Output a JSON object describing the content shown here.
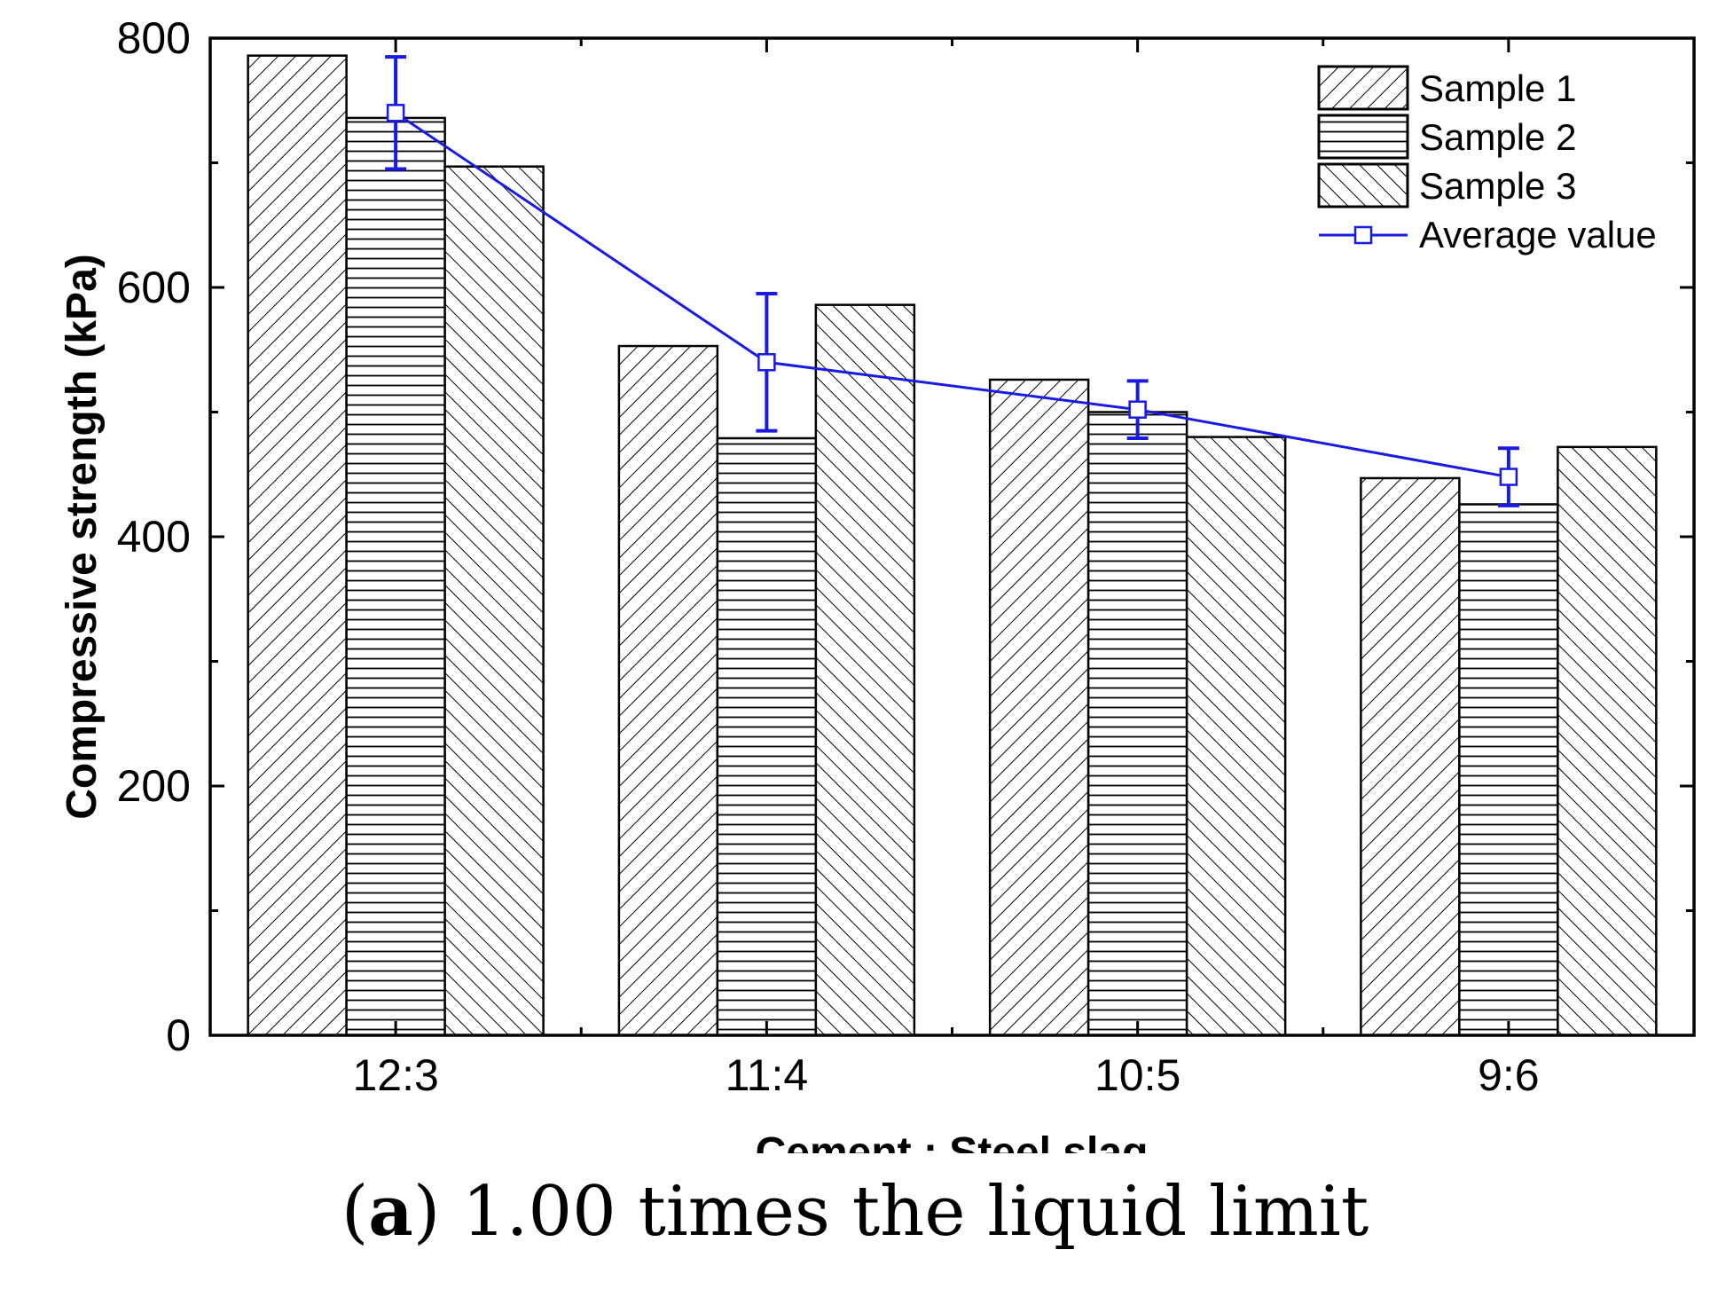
{
  "chart_data": {
    "type": "bar",
    "categories": [
      "12:3",
      "11:4",
      "10:5",
      "9:6"
    ],
    "series": [
      {
        "name": "Sample 1",
        "values": [
          786,
          553,
          526,
          447
        ],
        "pattern": "hatch-forward"
      },
      {
        "name": "Sample 2",
        "values": [
          736,
          479,
          500,
          426
        ],
        "pattern": "hatch-horizontal"
      },
      {
        "name": "Sample 3",
        "values": [
          697,
          586,
          480,
          472
        ],
        "pattern": "hatch-backward"
      }
    ],
    "line_series": {
      "name": "Average value",
      "values": [
        740,
        540,
        502,
        448
      ],
      "error": [
        45,
        55,
        23,
        23
      ],
      "color": "#1a1ae6",
      "marker": "open-square"
    },
    "xlabel": "Cement : Steel slag",
    "ylabel": "Compressive strength (kPa)",
    "ylim": [
      0,
      800
    ],
    "yticks": [
      0,
      200,
      400,
      600,
      800
    ],
    "legend_position": "top-right",
    "grid": false
  },
  "caption": {
    "label": "a",
    "text": "1.00 times the liquid limit"
  }
}
